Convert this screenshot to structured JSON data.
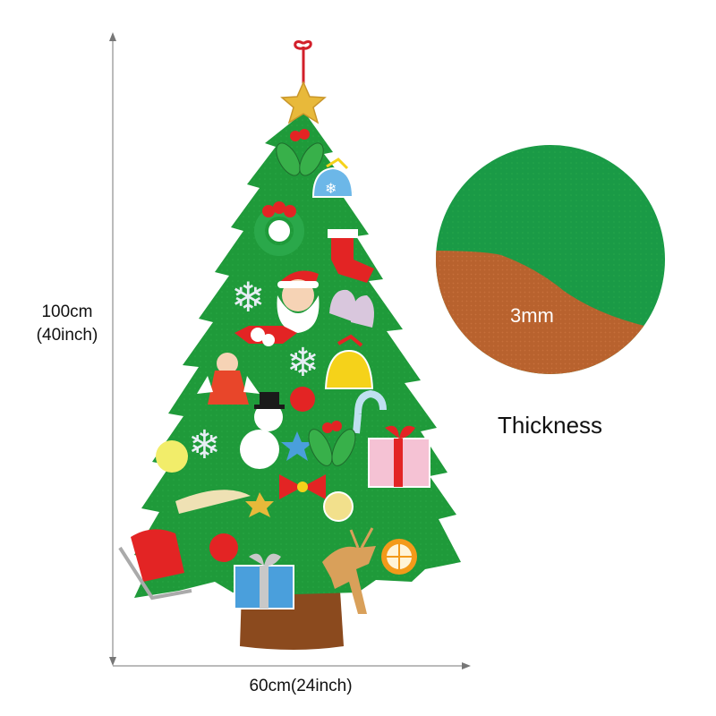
{
  "dimensions": {
    "height_cm": "100cm",
    "height_inch": "(40inch)",
    "width": "60cm(24inch)"
  },
  "detail": {
    "thickness_value": "3mm",
    "thickness_caption": "Thickness"
  },
  "colors": {
    "felt_green": "#1f9a3a",
    "trunk_brown": "#8b4a1e",
    "detail_brown": "#b8622e"
  }
}
